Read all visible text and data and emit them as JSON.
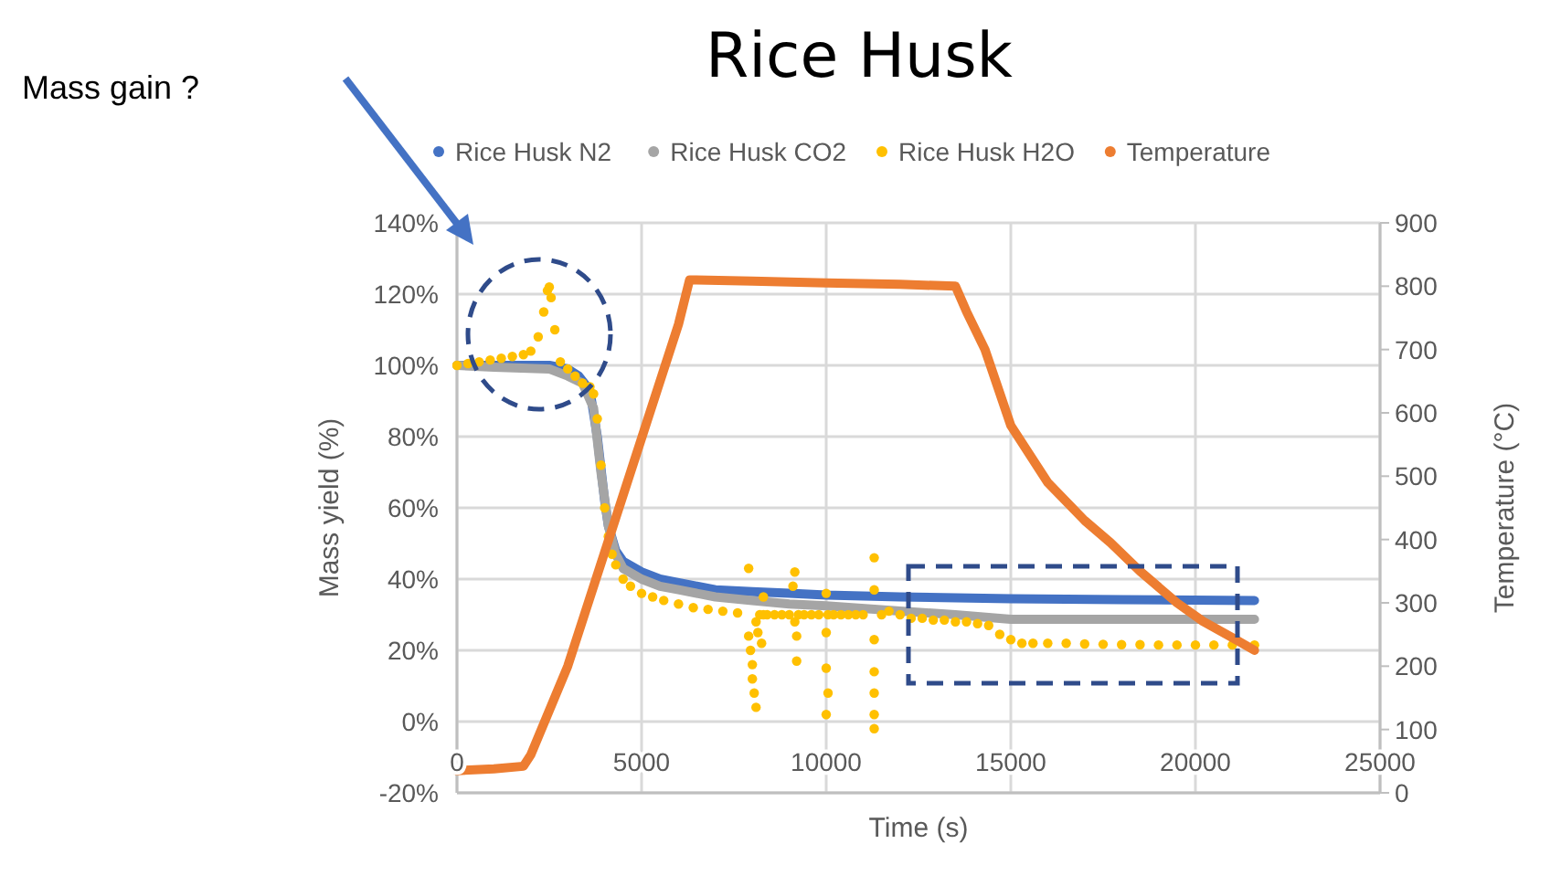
{
  "chart_data": {
    "type": "line",
    "title": "Rice Husk",
    "xlabel": "Time (s)",
    "ylabel": "Mass yield (%)",
    "y2label": "Temperature (°C)",
    "annotations": [
      "Mass gain ?"
    ],
    "xlim": [
      0,
      25000
    ],
    "xticks": [
      0,
      5000,
      10000,
      15000,
      20000,
      25000
    ],
    "ylim": [
      -20,
      140
    ],
    "yticks": [
      {
        "value": -20,
        "label": "-20%"
      },
      {
        "value": 0,
        "label": "0%"
      },
      {
        "value": 20,
        "label": "20%"
      },
      {
        "value": 40,
        "label": "40%"
      },
      {
        "value": 60,
        "label": "60%"
      },
      {
        "value": 80,
        "label": "80%"
      },
      {
        "value": 100,
        "label": "100%"
      },
      {
        "value": 120,
        "label": "120%"
      },
      {
        "value": 140,
        "label": "140%"
      }
    ],
    "y2lim": [
      0,
      900
    ],
    "y2ticks": [
      0,
      100,
      200,
      300,
      400,
      500,
      600,
      700,
      800,
      900
    ],
    "grid": true,
    "legend": "top",
    "marker": "none",
    "series": [
      {
        "name": "Rice Husk N2",
        "color": "#4472c4",
        "x": [
          0,
          1000,
          2500,
          3000,
          3300,
          3600,
          3800,
          4000,
          4100,
          4300,
          4500,
          5000,
          5500,
          6000,
          7000,
          8000,
          9000,
          10000,
          12000,
          15000,
          18000,
          21600
        ],
        "values": [
          100,
          100,
          100,
          99,
          97,
          93,
          80,
          62,
          55,
          48,
          45,
          42,
          40,
          39,
          37,
          36.5,
          36,
          35.5,
          35,
          34.5,
          34.2,
          34
        ]
      },
      {
        "name": "Rice Husk CO2",
        "color": "#a5a5a5",
        "x": [
          0,
          1000,
          2500,
          3000,
          3400,
          3700,
          3900,
          4100,
          4300,
          4500,
          5000,
          5500,
          6000,
          7000,
          8000,
          9000,
          10000,
          12000,
          13500,
          15000,
          18000,
          21600
        ],
        "values": [
          100,
          99.5,
          99,
          97,
          95,
          88,
          70,
          55,
          47,
          43,
          40,
          38,
          37,
          35,
          34,
          33,
          32.5,
          31,
          30,
          28.7,
          28.7,
          28.7
        ]
      },
      {
        "name": "Rice Husk H2O",
        "type": "scatter",
        "marker": "circle",
        "color": "#ffc000",
        "x": [
          0,
          300,
          600,
          900,
          1200,
          1500,
          1800,
          2000,
          2200,
          2350,
          2450,
          2500,
          2550,
          2650,
          2800,
          3000,
          3200,
          3400,
          3600,
          3700,
          3800,
          3900,
          4000,
          4100,
          4200,
          4300,
          4500,
          4700,
          5000,
          5300,
          5600,
          6000,
          6400,
          6800,
          7200,
          7600,
          7900,
          7900,
          7950,
          8000,
          8000,
          8050,
          8100,
          8100,
          8150,
          8200,
          8250,
          8300,
          8300,
          8400,
          8600,
          8800,
          9000,
          9100,
          9150,
          9150,
          9200,
          9200,
          9250,
          9400,
          9600,
          9800,
          10000,
          10000,
          10000,
          10000,
          10050,
          10050,
          10200,
          10400,
          10600,
          10800,
          11000,
          11300,
          11300,
          11300,
          11300,
          11300,
          11300,
          11300,
          11500,
          11700,
          12000,
          12300,
          12600,
          12900,
          13200,
          13500,
          13800,
          14100,
          14400,
          14700,
          15000,
          15300,
          15600,
          16000,
          16500,
          17000,
          17500,
          18000,
          18500,
          19000,
          19500,
          20000,
          20500,
          21000,
          21600
        ],
        "values": [
          100,
          100.5,
          101,
          101.5,
          102,
          102.5,
          103,
          104,
          108,
          115,
          121,
          122,
          119,
          110,
          101,
          99,
          97,
          95,
          94,
          92,
          85,
          72,
          60,
          52,
          47,
          44,
          40,
          38,
          36,
          35,
          34,
          33,
          32,
          31.5,
          31,
          30.5,
          43,
          24,
          20,
          16,
          12,
          8,
          4,
          28,
          25,
          30,
          22,
          35,
          30,
          30,
          30,
          30,
          30,
          38,
          42,
          28,
          24,
          17,
          30,
          30,
          30,
          30,
          36,
          25,
          15,
          2,
          8,
          30,
          30,
          30,
          30,
          30,
          30,
          46,
          37,
          23,
          14,
          8,
          2,
          -2,
          30,
          31,
          30,
          29,
          29,
          28.5,
          28.5,
          28,
          28,
          27.5,
          27,
          24.5,
          23,
          22,
          22,
          22,
          22,
          21.8,
          21.7,
          21.6,
          21.6,
          21.5,
          21.5,
          21.5,
          21.5,
          21.5,
          21.5
        ]
      },
      {
        "name": "Temperature",
        "axis": "y2",
        "color": "#ed7d31",
        "x": [
          0,
          1000,
          1800,
          2000,
          3000,
          4000,
          5000,
          6000,
          6300,
          8000,
          10000,
          12000,
          13500,
          13800,
          14300,
          15000,
          16000,
          17000,
          17700,
          18500,
          19500,
          20200,
          21000,
          21600
        ],
        "values": [
          35,
          38,
          42,
          60,
          200,
          380,
          560,
          740,
          810,
          808,
          805,
          803,
          800,
          760,
          700,
          580,
          490,
          430,
          395,
          350,
          300,
          271,
          245,
          225
        ]
      }
    ]
  }
}
